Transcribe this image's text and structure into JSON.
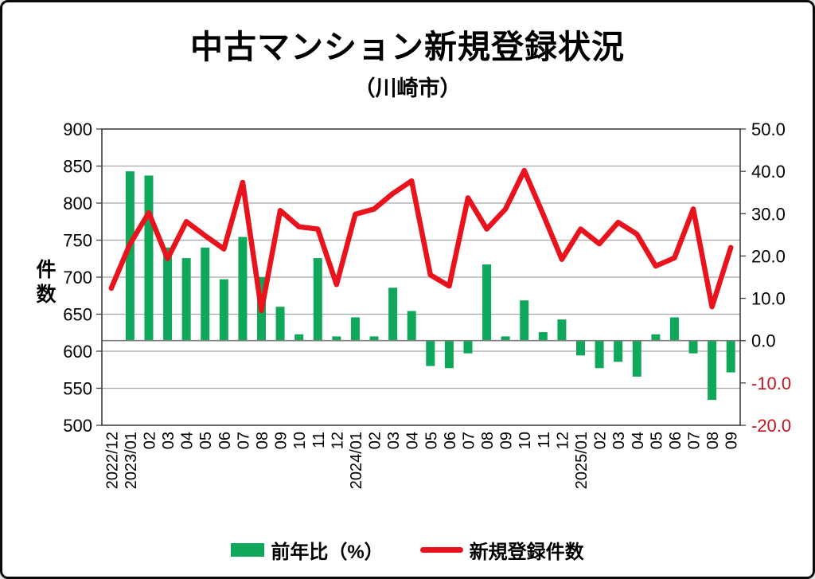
{
  "title": "中古マンション新規登録状況",
  "subtitle": "（川崎市）",
  "left_axis": {
    "label": "件数",
    "min": 500,
    "max": 900,
    "step": 50
  },
  "right_axis": {
    "min": -20,
    "max": 50,
    "step": 10,
    "decimals": 1
  },
  "legend": [
    {
      "label": "前年比（%）",
      "series": "bar"
    },
    {
      "label": "新規登録件数",
      "series": "line"
    }
  ],
  "colors": {
    "bar": "#0FA85A",
    "line": "#E9131D",
    "negative_tick_label": "#C41420",
    "tick_label": "#000000",
    "grid": "#A6A6A6",
    "plot_border": "#404040",
    "zero_axis_line": "#7F7F7F",
    "background": "#FFFFFF"
  },
  "chart_data": {
    "type": "combo-bar-line",
    "categories": [
      "2022/12",
      "2023/01",
      "02",
      "03",
      "04",
      "05",
      "06",
      "07",
      "08",
      "09",
      "10",
      "11",
      "12",
      "2024/01",
      "02",
      "03",
      "04",
      "05",
      "06",
      "07",
      "08",
      "09",
      "10",
      "11",
      "12",
      "2025/01",
      "02",
      "03",
      "04",
      "05",
      "06",
      "07",
      "08",
      "09"
    ],
    "series": [
      {
        "name": "前年比（%）",
        "type": "bar",
        "axis": "right",
        "values": [
          null,
          40,
          39,
          22,
          19.5,
          22,
          14.5,
          24.5,
          15,
          8,
          1.5,
          19.5,
          1,
          5.5,
          1,
          12.5,
          7,
          -6,
          -6.5,
          -3,
          18,
          1,
          9.5,
          2,
          5,
          -3.5,
          -6.5,
          -5,
          -8.5,
          1.5,
          5.5,
          -3,
          -14,
          -7.5
        ]
      },
      {
        "name": "新規登録件数",
        "type": "line",
        "axis": "left",
        "values": [
          685,
          745,
          787,
          725,
          775,
          756,
          738,
          828,
          655,
          790,
          768,
          765,
          690,
          785,
          792,
          813,
          830,
          703,
          688,
          807,
          765,
          792,
          844,
          785,
          724,
          765,
          745,
          774,
          758,
          715,
          726,
          792,
          660,
          740
        ]
      }
    ],
    "left_ylim": [
      500,
      900
    ],
    "right_ylim": [
      -20,
      50
    ],
    "grid": "horizontal",
    "legend_position": "bottom",
    "x_tick_rotation": 90
  }
}
